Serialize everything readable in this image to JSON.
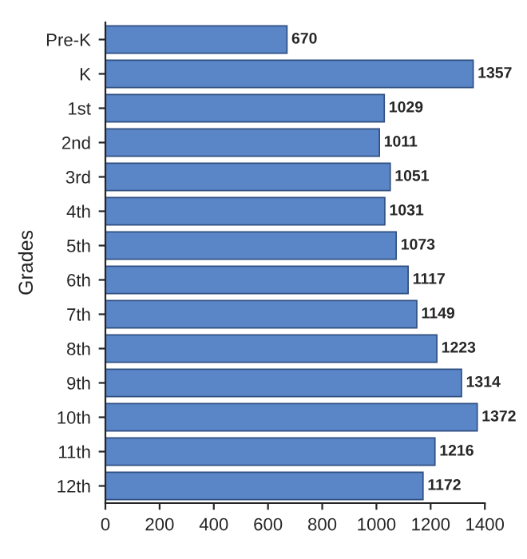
{
  "chart_data": {
    "type": "bar",
    "orientation": "horizontal",
    "ylabel": "Grades",
    "categories": [
      "Pre-K",
      "K",
      "1st",
      "2nd",
      "3rd",
      "4th",
      "5th",
      "6th",
      "7th",
      "8th",
      "9th",
      "10th",
      "11th",
      "12th"
    ],
    "values": [
      670,
      1357,
      1029,
      1011,
      1051,
      1031,
      1073,
      1117,
      1149,
      1223,
      1314,
      1372,
      1216,
      1172
    ],
    "color": "#5a86c8",
    "data_labels": true,
    "xlim": [
      0,
      1400
    ],
    "xticks": [
      0,
      200,
      400,
      600,
      800,
      1000,
      1200,
      1400
    ],
    "grid": false,
    "legend": false
  }
}
